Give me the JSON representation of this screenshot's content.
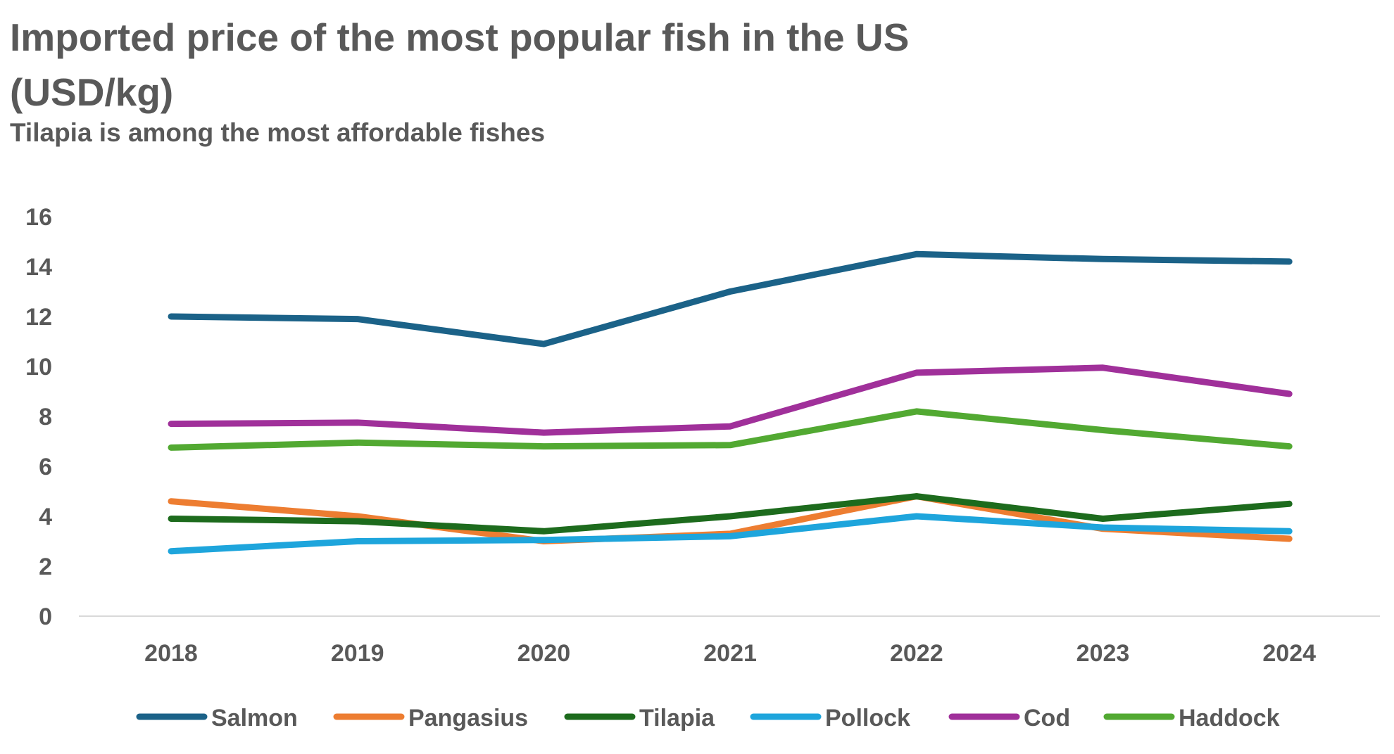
{
  "chart_data": {
    "type": "line",
    "title": "Imported price of the most popular fish in the US (USD/kg)",
    "subtitle": "Tilapia is among the most affordable fishes",
    "xlabel": "",
    "ylabel": "",
    "categories": [
      "2018",
      "2019",
      "2020",
      "2021",
      "2022",
      "2023",
      "2024"
    ],
    "ylim": [
      0,
      16
    ],
    "yticks": [
      0,
      2,
      4,
      6,
      8,
      10,
      12,
      14,
      16
    ],
    "grid": false,
    "legend_position": "bottom",
    "series": [
      {
        "name": "Salmon",
        "color": "#1b6288",
        "values": [
          12.0,
          11.9,
          10.9,
          13.0,
          14.5,
          14.3,
          14.2
        ]
      },
      {
        "name": "Pangasius",
        "color": "#ed7d31",
        "values": [
          4.6,
          4.0,
          3.0,
          3.3,
          4.8,
          3.5,
          3.1
        ]
      },
      {
        "name": "Tilapia",
        "color": "#1d6b1d",
        "values": [
          3.9,
          3.8,
          3.4,
          4.0,
          4.8,
          3.9,
          4.5
        ]
      },
      {
        "name": "Pollock",
        "color": "#1ea5dc",
        "values": [
          2.6,
          3.0,
          3.05,
          3.2,
          4.0,
          3.55,
          3.4
        ]
      },
      {
        "name": "Cod",
        "color": "#a0309a",
        "values": [
          7.7,
          7.75,
          7.35,
          7.6,
          9.75,
          9.95,
          8.9
        ]
      },
      {
        "name": "Haddock",
        "color": "#52a932",
        "values": [
          6.75,
          6.95,
          6.8,
          6.85,
          8.2,
          7.45,
          6.8
        ]
      }
    ]
  }
}
